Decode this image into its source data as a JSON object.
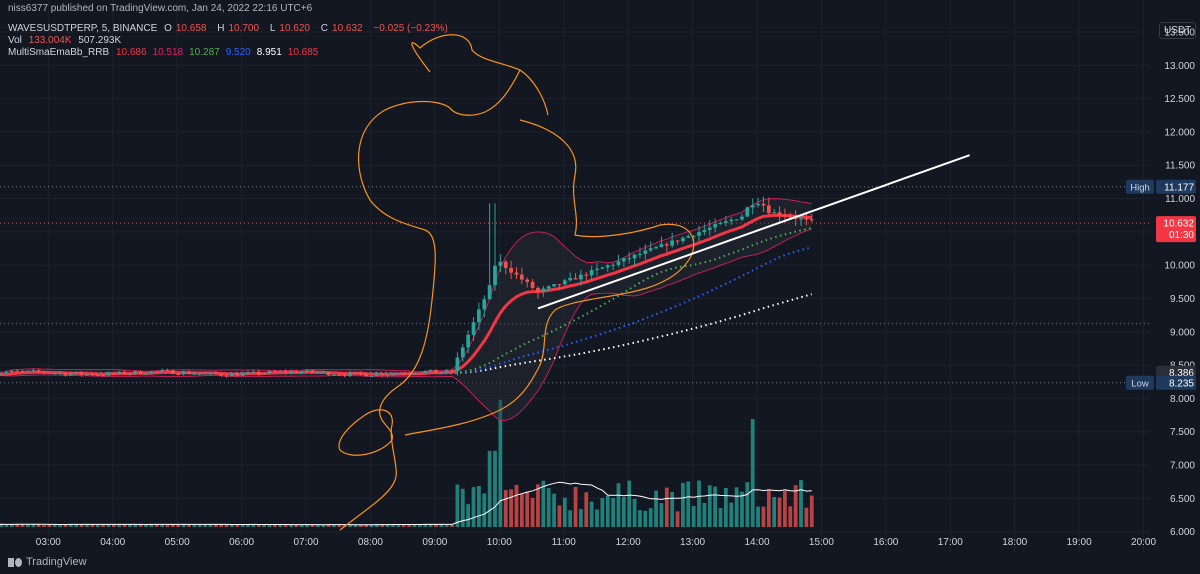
{
  "header": {
    "publisher": "niss6377 published on TradingView.com, Jan 24, 2022 22:16 UTC+6",
    "symbol": "WAVESUSDTPERP, 5, BINANCE",
    "o_label": "O",
    "o_value": "10.658",
    "h_label": "H",
    "h_value": "10.700",
    "l_label": "L",
    "l_value": "10.620",
    "c_label": "C",
    "c_value": "10.632",
    "change": "−0.025 (−0.23%)",
    "vol_label": "Vol",
    "vol_value1": "133.004K",
    "vol_value2": "507.293K",
    "indicator_name": "MultiSmaEmaBb_RRB",
    "indicator_values": [
      {
        "value": "10.686",
        "color": "#f23645"
      },
      {
        "value": "10.518",
        "color": "#e91e63"
      },
      {
        "value": "10.287",
        "color": "#4caf50"
      },
      {
        "value": "9.520",
        "color": "#2962ff"
      },
      {
        "value": "8.951",
        "color": "#ffffff"
      },
      {
        "value": "10.685",
        "color": "#f23645"
      }
    ]
  },
  "currency": "USDT",
  "footer": {
    "brand": "TradingView"
  },
  "price_badges": [
    {
      "label": "High",
      "value": "11.177",
      "price": 11.177,
      "color": "#1e3a5f"
    },
    {
      "label": "",
      "value": "10.632",
      "sub": "01:30",
      "price": 10.632,
      "color": "#f23645"
    },
    {
      "label": "",
      "value": "8.386",
      "price": 8.386,
      "color": "#2a2e39"
    },
    {
      "label": "Low",
      "value": "8.235",
      "price": 8.235,
      "color": "#1e3a5f"
    }
  ],
  "chart_data": {
    "type": "candlestick",
    "title": "",
    "xlabel": "",
    "ylabel": "",
    "ylim": [
      5.8,
      13.8
    ],
    "y_ticks": [
      "6.000",
      "6.500",
      "7.000",
      "7.500",
      "8.000",
      "8.500",
      "9.000",
      "9.500",
      "10.000",
      "10.500",
      "11.000",
      "11.500",
      "12.000",
      "12.500",
      "13.000",
      "13.500"
    ],
    "x_ticks": [
      "03:00",
      "04:00",
      "05:00",
      "06:00",
      "07:00",
      "08:00",
      "09:00",
      "10:00",
      "11:00",
      "12:00",
      "13:00",
      "14:00",
      "15:00",
      "16:00",
      "17:00",
      "18:00",
      "19:00",
      "20:00"
    ],
    "x_range_hours": [
      2.25,
      20.1
    ],
    "last_bar_hour": 14.85,
    "volume_max": 1.0,
    "annotations": {
      "trendline": {
        "from": [
          10.6,
          9.35
        ],
        "to": [
          17.3,
          11.65
        ],
        "color": "#ffffff"
      },
      "high_line_price": 11.177,
      "low_line_price": 8.235
    },
    "series_colors": {
      "up": "#26a69a",
      "down": "#ef5350",
      "ema_fast": "#f23645",
      "bb_band": "#e91e63",
      "sma_green": "#4caf50",
      "sma_blue": "#2962ff",
      "sma_white": "#ffffff",
      "vol_ma": "#ffffff",
      "drawing": "#f7931a"
    }
  }
}
